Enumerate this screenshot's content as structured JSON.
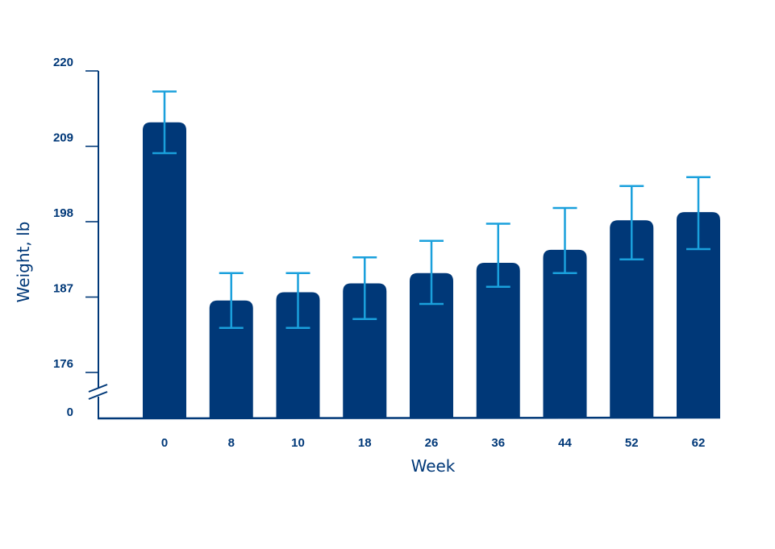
{
  "chart_data": {
    "type": "bar",
    "title": "",
    "xlabel": "Week",
    "ylabel": "Weight, lb",
    "categories": [
      "0",
      "8",
      "10",
      "18",
      "26",
      "36",
      "44",
      "52",
      "62"
    ],
    "values": [
      212.5,
      186.5,
      187.7,
      189.0,
      190.5,
      192.0,
      193.9,
      198.2,
      199.4
    ],
    "error_low": [
      208.0,
      182.5,
      182.5,
      183.8,
      186.0,
      188.5,
      190.5,
      192.5,
      194.0
    ],
    "error_high": [
      217.0,
      190.5,
      190.5,
      192.8,
      195.2,
      197.7,
      200.0,
      203.2,
      204.5
    ],
    "ylim": [
      0,
      220
    ],
    "yticks": [
      "220",
      "209",
      "198",
      "187",
      "176",
      "0"
    ],
    "axis_break": true,
    "grid": false,
    "colors": {
      "bar": "#003878",
      "error_bar": "#1aa0dc",
      "text": "#003878",
      "axis": "#003878"
    }
  }
}
